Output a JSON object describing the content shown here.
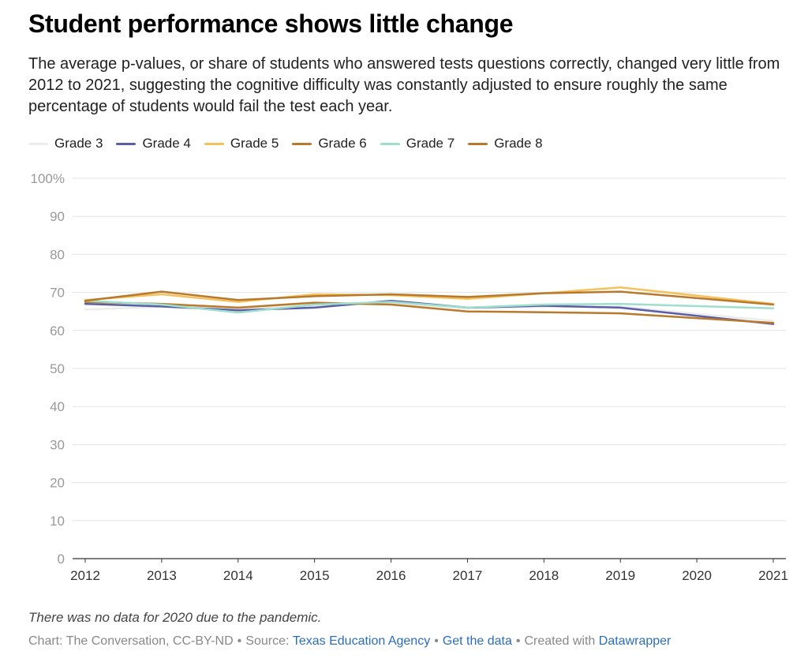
{
  "chart_data": {
    "type": "line",
    "title": "Student performance shows little change",
    "subtitle": "The average p-values, or share of students who answered tests questions correctly, changed very little from 2012 to 2021, suggesting the cognitive difficulty was constantly adjusted to ensure roughly the same percentage of students would fail the test each year.",
    "x": [
      "2012",
      "2013",
      "2014",
      "2015",
      "2016",
      "2017",
      "2018",
      "2019",
      "2020",
      "2021"
    ],
    "ylim": [
      0,
      100
    ],
    "y_ticks": [
      0,
      10,
      20,
      30,
      40,
      50,
      60,
      70,
      80,
      90,
      100
    ],
    "y_tick_labels": [
      "0",
      "10",
      "20",
      "30",
      "40",
      "50",
      "60",
      "70",
      "80",
      "90",
      "100%"
    ],
    "grid": true,
    "legend_position": "top",
    "series": [
      {
        "name": "Grade 3",
        "color": "#ececec",
        "values": [
          65.5,
          66.2,
          65.5,
          66.5,
          67.2,
          65.8,
          66.2,
          66.3,
          null,
          62.5
        ]
      },
      {
        "name": "Grade 4",
        "color": "#5b5ea6",
        "values": [
          67.0,
          66.3,
          65.3,
          66.0,
          67.8,
          66.0,
          66.5,
          66.0,
          null,
          61.7
        ]
      },
      {
        "name": "Grade 5",
        "color": "#f5c15c",
        "values": [
          68.0,
          69.5,
          67.5,
          69.5,
          69.3,
          68.3,
          69.8,
          71.3,
          null,
          67.0
        ]
      },
      {
        "name": "Grade 6",
        "color": "#b8792d",
        "values": [
          67.5,
          67.0,
          66.0,
          67.3,
          66.8,
          65.0,
          64.8,
          64.5,
          null,
          62.0
        ]
      },
      {
        "name": "Grade 7",
        "color": "#9ddfcc",
        "values": [
          67.8,
          66.8,
          64.7,
          66.8,
          67.5,
          66.0,
          66.8,
          67.0,
          null,
          65.8
        ]
      },
      {
        "name": "Grade 8",
        "color": "#b8792d",
        "values": [
          67.8,
          70.2,
          68.0,
          69.0,
          69.5,
          68.8,
          69.8,
          70.2,
          null,
          66.8
        ]
      }
    ],
    "notes": "There was no data for 2020 due to the pandemic."
  },
  "footer": {
    "credit": "Chart: The Conversation, CC-BY-ND",
    "source_prefix": "Source:",
    "source_link": "Texas Education Agency",
    "get_data": "Get the data",
    "created_prefix": "Created with",
    "created_link": "Datawrapper",
    "sep": "•"
  }
}
